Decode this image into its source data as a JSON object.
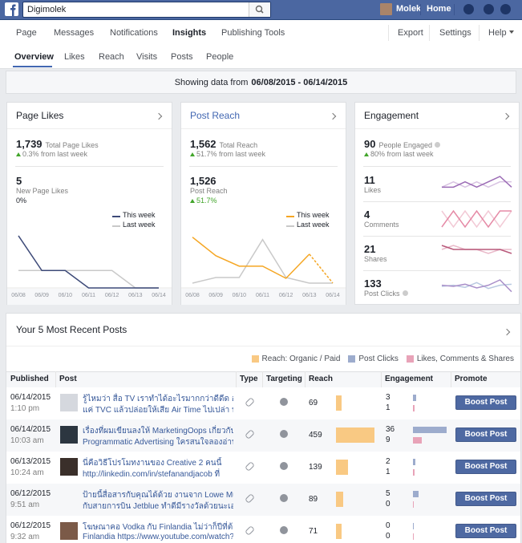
{
  "topbar": {
    "search": "Digimolek",
    "user": "Molek",
    "home": "Home"
  },
  "nav": {
    "left": [
      "Page",
      "Messages",
      "Notifications",
      "Insights",
      "Publishing Tools"
    ],
    "right": [
      "Export",
      "Settings",
      "Help"
    ],
    "active": 3
  },
  "subnav": {
    "items": [
      "Overview",
      "Likes",
      "Reach",
      "Visits",
      "Posts",
      "People"
    ],
    "active": 0
  },
  "date_range": {
    "prefix": "Showing data from",
    "range": "06/08/2015 - 06/14/2015"
  },
  "cards": {
    "page_likes": {
      "title": "Page Likes",
      "total": "1,739",
      "total_label": "Total Page Likes",
      "change": "0.3% from last week",
      "sub_value": "5",
      "sub_label": "New Page Likes",
      "sub_change": "0%",
      "chart": {
        "type": "line",
        "x": [
          "06/08",
          "06/09",
          "06/10",
          "06/11",
          "06/12",
          "06/13",
          "06/14"
        ],
        "series": [
          {
            "name": "This week",
            "color": "#3d4a78",
            "values": [
              3,
              1,
              1,
              0,
              0,
              0,
              0
            ]
          },
          {
            "name": "Last week",
            "color": "#c9c9c9",
            "values": [
              1,
              1,
              1,
              1,
              1,
              0,
              0
            ]
          }
        ]
      }
    },
    "post_reach": {
      "title": "Post Reach",
      "total": "1,562",
      "total_label": "Total Reach",
      "change": "51.7% from last week",
      "sub_value": "1,526",
      "sub_label": "Post Reach",
      "sub_change": "51.7%",
      "chart": {
        "type": "line",
        "x": [
          "06/08",
          "06/09",
          "06/10",
          "06/11",
          "06/12",
          "06/13",
          "06/14"
        ],
        "series": [
          {
            "name": "This week",
            "color": "#f5a623",
            "values": [
              443,
              281,
              190,
              190,
              84,
              295,
              43
            ],
            "dashed_last": true
          },
          {
            "name": "Last week",
            "color": "#c9c9c9",
            "values": [
              42,
              91,
              91,
              422,
              91,
              42,
              42
            ]
          }
        ]
      }
    },
    "engagement": {
      "title": "Engagement",
      "total": "90",
      "total_label": "People Engaged",
      "change": "80% from last week",
      "rows": [
        {
          "value": "11",
          "label": "Likes",
          "series": [
            {
              "color": "#d8c3e2",
              "values": [
                1,
                2,
                1,
                2,
                1,
                2,
                2
              ]
            },
            {
              "color": "#9b6bb5",
              "values": [
                1,
                1,
                2,
                1,
                2,
                3,
                1
              ]
            }
          ]
        },
        {
          "value": "4",
          "label": "Comments",
          "series": [
            {
              "color": "#f2c9d5",
              "values": [
                1,
                0,
                1,
                0,
                1,
                0,
                1
              ]
            },
            {
              "color": "#e58aa6",
              "values": [
                0,
                1,
                0,
                1,
                0,
                1,
                1
              ]
            }
          ]
        },
        {
          "value": "21",
          "label": "Shares",
          "series": [
            {
              "color": "#e9b9c9",
              "values": [
                3,
                4,
                3,
                3,
                2,
                3,
                3
              ]
            },
            {
              "color": "#b8587a",
              "values": [
                4,
                3,
                3,
                3,
                3,
                3,
                2
              ]
            }
          ]
        },
        {
          "value": "133",
          "label": "Post Clicks",
          "series": [
            {
              "color": "#b9c9e1",
              "values": [
                18,
                20,
                16,
                25,
                14,
                20,
                22
              ]
            },
            {
              "color": "#a98fc9",
              "values": [
                20,
                18,
                22,
                15,
                20,
                30,
                8
              ]
            }
          ]
        }
      ]
    }
  },
  "posts": {
    "title": "Your 5 Most Recent Posts",
    "legend": [
      {
        "label": "Reach: Organic / Paid",
        "color": "#f9c983"
      },
      {
        "label": "Post Clicks",
        "color": "#9daccd"
      },
      {
        "label": "Likes, Comments & Shares",
        "color": "#e8a3b8"
      }
    ],
    "columns": [
      "Published",
      "Post",
      "Type",
      "Targeting",
      "Reach",
      "Engagement",
      "Promote"
    ],
    "button": "Boost Post",
    "rows": [
      {
        "date": "06/14/2015",
        "time": "1:10 pm",
        "text": [
          "รู้ไหมว่า สื่อ TV เราทำได้อะไรมากกว่าดีดีด อย่าทำ",
          "แค่ TVC แล้วปล่อยให้เสีย Air Time ไปเปล่า ปรี้"
        ],
        "reach": 69,
        "clicks": 3,
        "likes": 1
      },
      {
        "date": "06/14/2015",
        "time": "10:03 am",
        "text": [
          "เรื่องที่ผมเขียนลงให้ MarketingOops เกี่ยวกับ",
          "Programmatic Advertising ใครสนใจลองอ่านดู"
        ],
        "reach": 459,
        "clicks": 36,
        "likes": 9
      },
      {
        "date": "06/13/2015",
        "time": "10:24 am",
        "text": [
          "นี่คือวิธีโปรโมทงานของ Creative 2 คนนี้",
          "http://linkedin.com/in/stefanandjacob ที่"
        ],
        "reach": 139,
        "clicks": 2,
        "likes": 1
      },
      {
        "date": "06/12/2015",
        "time": "9:51 am",
        "text": [
          "ป้ายนี้สื่อสารกับคุณได้ด้วย งานจาก Lowe Mullen",
          "กับสายการบิน Jetblue ทำดีมีรางวัลด้วยนะเอ่อ"
        ],
        "reach": 89,
        "clicks": 5,
        "likes": 0
      },
      {
        "date": "06/12/2015",
        "time": "9:32 am",
        "text": [
          "โฆษณาคอ Vodka กับ Finlandia ไม่ว่าก็ปีที่ต้อง",
          "Finlandia https://www.youtube.com/watch?"
        ],
        "reach": 71,
        "clicks": 0,
        "likes": 0
      }
    ]
  }
}
